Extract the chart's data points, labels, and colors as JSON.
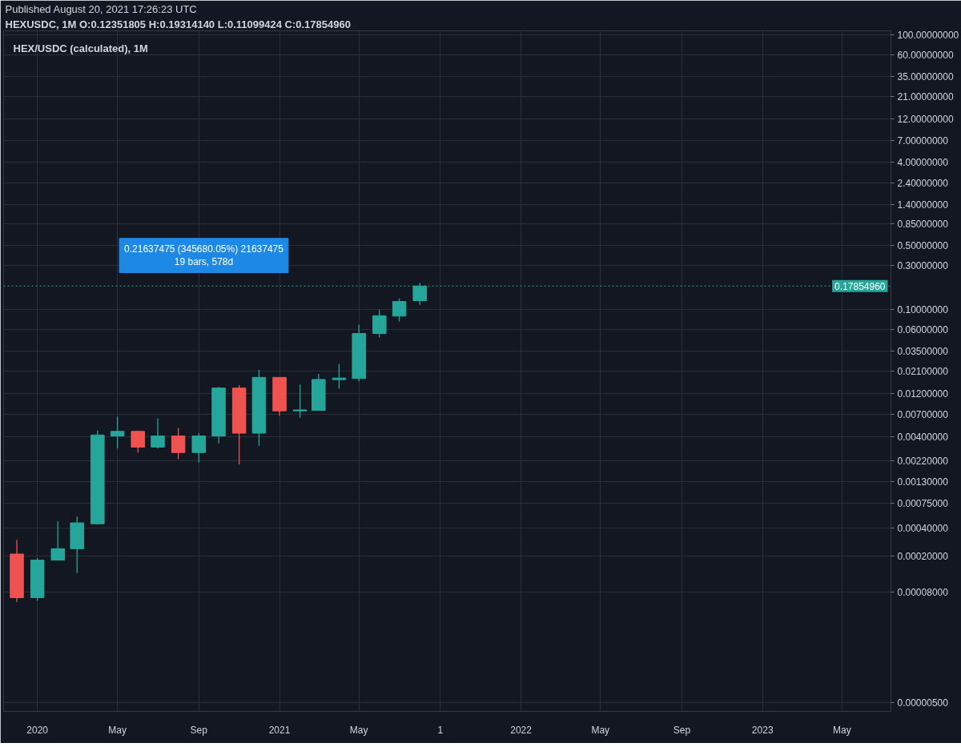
{
  "chart_data": {
    "type": "candlestick",
    "title": "HEX/USDC (calculated), 1M",
    "subtitle": "HEXUSDC, 1M O:0.12351805 H:0.19314140 L:0.11099424 C:0.17854960",
    "annotations": [
      "Published August 20, 2021 17:26:23 UTC",
      "0.21637475 (345680.05%) 21637475\n19 bars, 578d"
    ],
    "x": [
      "2019-12",
      "2020-01",
      "2020-02",
      "2020-03",
      "2020-04",
      "2020-05",
      "2020-06",
      "2020-07",
      "2020-08",
      "2020-09",
      "2020-10",
      "2020-11",
      "2020-12",
      "2021-01",
      "2021-02",
      "2021-03",
      "2021-04",
      "2021-05",
      "2021-06",
      "2021-07",
      "2021-08"
    ],
    "ohlc": [
      [
        0.00021,
        0.0003,
        6.26e-05,
        7e-05
      ],
      [
        7e-05,
        0.00019,
        6.5e-05,
        0.00018
      ],
      [
        0.00018,
        0.00048,
        0.00018,
        0.00024
      ],
      [
        0.00024,
        0.00054,
        0.00013,
        0.00046
      ],
      [
        0.00045,
        0.0047,
        0.00044,
        0.0042
      ],
      [
        0.0041,
        0.0067,
        0.003,
        0.0046
      ],
      [
        0.0046,
        0.0047,
        0.0027,
        0.0031
      ],
      [
        0.0031,
        0.0064,
        0.003,
        0.0041
      ],
      [
        0.0041,
        0.005,
        0.0023,
        0.0027
      ],
      [
        0.0027,
        0.0044,
        0.0021,
        0.0041
      ],
      [
        0.0041,
        0.014,
        0.0034,
        0.0137
      ],
      [
        0.0137,
        0.0147,
        0.002,
        0.0044
      ],
      [
        0.0044,
        0.0216,
        0.0032,
        0.0179
      ],
      [
        0.0179,
        0.018,
        0.0068,
        0.0077
      ],
      [
        0.0077,
        0.015,
        0.0065,
        0.0079
      ],
      [
        0.0078,
        0.0195,
        0.0078,
        0.017
      ],
      [
        0.0169,
        0.0251,
        0.0135,
        0.0176
      ],
      [
        0.0174,
        0.067,
        0.0162,
        0.054
      ],
      [
        0.054,
        0.098,
        0.049,
        0.0845
      ],
      [
        0.0838,
        0.13,
        0.073,
        0.121
      ],
      [
        0.12351805,
        0.1931414,
        0.11099424,
        0.1785496
      ]
    ],
    "colors": [
      "#ef5350",
      "#26a69a",
      "#26a69a",
      "#26a69a",
      "#26a69a",
      "#26a69a",
      "#ef5350",
      "#26a69a",
      "#ef5350",
      "#26a69a",
      "#26a69a",
      "#ef5350",
      "#26a69a",
      "#ef5350",
      "#26a69a",
      "#26a69a",
      "#26a69a",
      "#26a69a",
      "#26a69a",
      "#26a69a",
      "#26a69a"
    ],
    "xlim": [
      "2019-11-11",
      "2023-07-14"
    ],
    "ylim": [
      4e-06,
      110
    ],
    "xticks": [
      {
        "value": "2020-01",
        "label": "2020"
      },
      {
        "value": "2020-05",
        "label": "May"
      },
      {
        "value": "2020-09",
        "label": "Sep"
      },
      {
        "value": "2021-01",
        "label": "2021"
      },
      {
        "value": "2021-05",
        "label": "May"
      },
      {
        "value": "2021-09",
        "label": "1"
      },
      {
        "value": "2022-01",
        "label": "2022"
      },
      {
        "value": "2022-05",
        "label": "May"
      },
      {
        "value": "2022-09",
        "label": "Sep"
      },
      {
        "value": "2023-01",
        "label": "2023"
      },
      {
        "value": "2023-05",
        "label": "May"
      }
    ],
    "yticks": [
      {
        "value": 100,
        "label": "100.00000000"
      },
      {
        "value": 60,
        "label": "60.00000000"
      },
      {
        "value": 35,
        "label": "35.00000000"
      },
      {
        "value": 21,
        "label": "21.00000000"
      },
      {
        "value": 12,
        "label": "12.00000000"
      },
      {
        "value": 7,
        "label": "7.00000000"
      },
      {
        "value": 4,
        "label": "4.00000000"
      },
      {
        "value": 2.4,
        "label": "2.40000000"
      },
      {
        "value": 1.4,
        "label": "1.40000000"
      },
      {
        "value": 0.85,
        "label": "0.85000000"
      },
      {
        "value": 0.5,
        "label": "0.50000000"
      },
      {
        "value": 0.3,
        "label": "0.30000000"
      },
      {
        "value": 0.1,
        "label": "0.10000000"
      },
      {
        "value": 0.06,
        "label": "0.06000000"
      },
      {
        "value": 0.035,
        "label": "0.03500000"
      },
      {
        "value": 0.021,
        "label": "0.02100000"
      },
      {
        "value": 0.012,
        "label": "0.01200000"
      },
      {
        "value": 0.007,
        "label": "0.00700000"
      },
      {
        "value": 0.004,
        "label": "0.00400000"
      },
      {
        "value": 0.0022,
        "label": "0.00220000"
      },
      {
        "value": 0.0013,
        "label": "0.00130000"
      },
      {
        "value": 0.00075,
        "label": "0.00075000"
      },
      {
        "value": 0.0004,
        "label": "0.00040000"
      },
      {
        "value": 0.0002,
        "label": "0.00020000"
      },
      {
        "value": 8e-05,
        "label": "0.00008000"
      },
      {
        "value": 5e-06,
        "label": "0.00000500"
      }
    ],
    "log": true,
    "grid": true,
    "ref_lines": [
      {
        "axis": "y",
        "value": 0.1785496,
        "label": "0.17854960",
        "color": "#26a69a",
        "line_style": "dotted"
      }
    ]
  }
}
